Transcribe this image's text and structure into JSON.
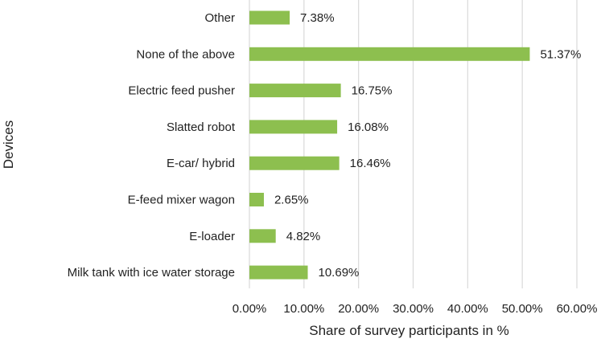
{
  "chart_data": {
    "type": "bar",
    "orientation": "horizontal",
    "categories": [
      "Other",
      "None of the above",
      "Electric feed pusher",
      "Slatted robot",
      "E-car/ hybrid",
      "E-feed mixer wagon",
      "E-loader",
      "Milk tank with ice water storage"
    ],
    "values": [
      7.38,
      51.37,
      16.75,
      16.08,
      16.46,
      2.65,
      4.82,
      10.69
    ],
    "data_labels": [
      "7.38%",
      "51.37%",
      "16.75%",
      "16.08%",
      "16.46%",
      "2.65%",
      "4.82%",
      "10.69%"
    ],
    "xlabel": "Share of survey participants in %",
    "ylabel": "Devices",
    "xlim": [
      0,
      60
    ],
    "x_ticks": [
      0,
      10,
      20,
      30,
      40,
      50,
      60
    ],
    "x_tick_labels": [
      "0.00%",
      "10.00%",
      "20.00%",
      "30.00%",
      "40.00%",
      "50.00%",
      "60.00%"
    ],
    "grid": "vertical",
    "legend": "none",
    "bar_color": "#8DBF4F"
  }
}
